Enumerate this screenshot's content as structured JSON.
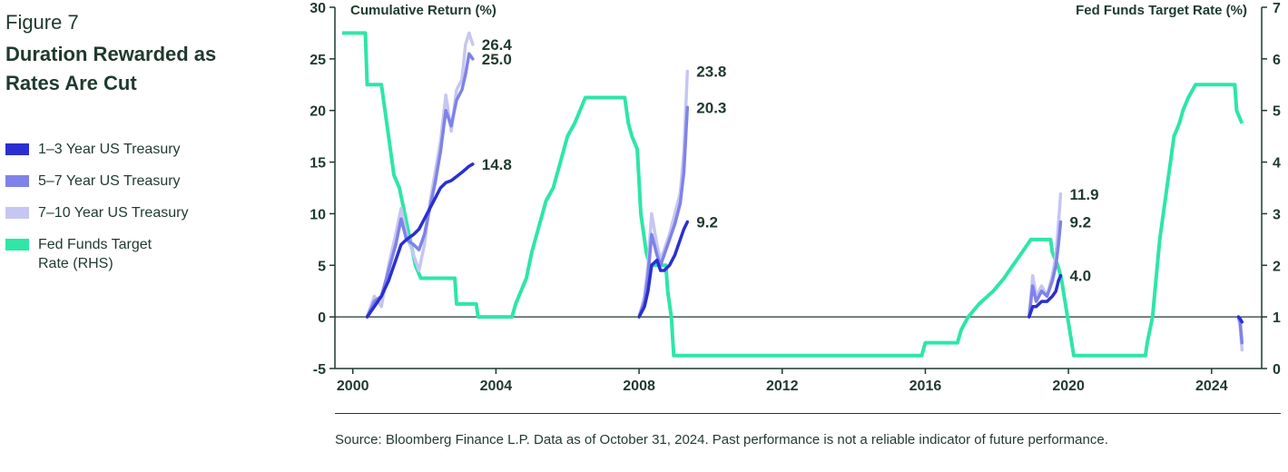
{
  "figure": {
    "label": "Figure 7",
    "title": "Duration Rewarded as Rates Are Cut"
  },
  "legend": [
    {
      "label": "1–3 Year US Treasury",
      "color": "#2b2fd0"
    },
    {
      "label": "5–7 Year US Treasury",
      "color": "#7f82e8"
    },
    {
      "label": "7–10 Year US Treasury",
      "color": "#c6c6f2"
    },
    {
      "label": "Fed Funds Target Rate (RHS)",
      "color": "#2ee6a6"
    }
  ],
  "source": "Source: Bloomberg Finance L.P. Data as of October 31, 2024. Past performance is not a reliable indicator of future performance.",
  "chart_data": {
    "type": "line",
    "left_axis": {
      "title": "Cumulative Return (%)",
      "ylim": [
        -5,
        30
      ],
      "ticks": [
        30,
        25,
        20,
        15,
        10,
        5,
        0,
        -5
      ]
    },
    "right_axis": {
      "title": "Fed Funds Target Rate (%)",
      "ylim": [
        0,
        7
      ],
      "ticks": [
        7,
        6,
        5,
        4,
        3,
        2,
        1,
        0
      ]
    },
    "x_axis": {
      "xlim": [
        1999.5,
        2025.4
      ],
      "ticks": [
        2000,
        2004,
        2008,
        2012,
        2016,
        2020,
        2024
      ]
    },
    "zero_line": 0,
    "fed_funds": {
      "name": "Fed Funds Target Rate (RHS)",
      "axis": "right",
      "color": "#2ee6a6",
      "points": [
        [
          1999.7,
          6.5
        ],
        [
          2000.35,
          6.5
        ],
        [
          2000.4,
          5.5
        ],
        [
          2000.8,
          5.5
        ],
        [
          2001.0,
          4.5
        ],
        [
          2001.15,
          3.75
        ],
        [
          2001.3,
          3.5
        ],
        [
          2001.45,
          3.0
        ],
        [
          2001.6,
          2.5
        ],
        [
          2001.75,
          2.0
        ],
        [
          2001.9,
          1.75
        ],
        [
          2002.85,
          1.75
        ],
        [
          2002.9,
          1.25
        ],
        [
          2003.45,
          1.25
        ],
        [
          2003.5,
          1.0
        ],
        [
          2004.45,
          1.0
        ],
        [
          2004.55,
          1.25
        ],
        [
          2004.7,
          1.5
        ],
        [
          2004.85,
          1.75
        ],
        [
          2005.0,
          2.25
        ],
        [
          2005.2,
          2.75
        ],
        [
          2005.4,
          3.25
        ],
        [
          2005.6,
          3.5
        ],
        [
          2005.8,
          4.0
        ],
        [
          2006.0,
          4.5
        ],
        [
          2006.2,
          4.75
        ],
        [
          2006.5,
          5.25
        ],
        [
          2007.6,
          5.25
        ],
        [
          2007.7,
          4.75
        ],
        [
          2007.8,
          4.5
        ],
        [
          2007.95,
          4.25
        ],
        [
          2008.05,
          3.0
        ],
        [
          2008.2,
          2.25
        ],
        [
          2008.3,
          2.0
        ],
        [
          2008.75,
          2.0
        ],
        [
          2008.8,
          1.5
        ],
        [
          2008.9,
          1.0
        ],
        [
          2008.97,
          0.25
        ],
        [
          2015.9,
          0.25
        ],
        [
          2016.0,
          0.5
        ],
        [
          2016.9,
          0.5
        ],
        [
          2017.0,
          0.75
        ],
        [
          2017.2,
          1.0
        ],
        [
          2017.5,
          1.25
        ],
        [
          2017.9,
          1.5
        ],
        [
          2018.2,
          1.75
        ],
        [
          2018.45,
          2.0
        ],
        [
          2018.7,
          2.25
        ],
        [
          2018.95,
          2.5
        ],
        [
          2019.5,
          2.5
        ],
        [
          2019.55,
          2.25
        ],
        [
          2019.7,
          2.0
        ],
        [
          2019.8,
          1.75
        ],
        [
          2020.15,
          0.25
        ],
        [
          2022.15,
          0.25
        ],
        [
          2022.2,
          0.5
        ],
        [
          2022.35,
          1.0
        ],
        [
          2022.45,
          1.75
        ],
        [
          2022.55,
          2.5
        ],
        [
          2022.7,
          3.25
        ],
        [
          2022.85,
          4.0
        ],
        [
          2022.95,
          4.5
        ],
        [
          2023.1,
          4.75
        ],
        [
          2023.2,
          5.0
        ],
        [
          2023.35,
          5.25
        ],
        [
          2023.55,
          5.5
        ],
        [
          2024.65,
          5.5
        ],
        [
          2024.7,
          5.0
        ],
        [
          2024.85,
          4.75
        ]
      ]
    },
    "series": [
      {
        "name": "7–10 Year US Treasury",
        "color": "#c6c6f2",
        "axis": "left",
        "segments": [
          [
            [
              2000.4,
              0
            ],
            [
              2000.6,
              2
            ],
            [
              2000.8,
              1
            ],
            [
              2001.0,
              5
            ],
            [
              2001.2,
              8
            ],
            [
              2001.35,
              10.5
            ],
            [
              2001.5,
              8
            ],
            [
              2001.7,
              6
            ],
            [
              2001.85,
              4.5
            ],
            [
              2002.0,
              7
            ],
            [
              2002.15,
              11
            ],
            [
              2002.3,
              14
            ],
            [
              2002.45,
              17
            ],
            [
              2002.6,
              21.5
            ],
            [
              2002.75,
              18
            ],
            [
              2002.9,
              22
            ],
            [
              2003.05,
              23
            ],
            [
              2003.15,
              26.4
            ],
            [
              2003.25,
              27.5
            ],
            [
              2003.35,
              26.4
            ]
          ],
          [
            [
              2008.0,
              0
            ],
            [
              2008.15,
              2
            ],
            [
              2008.25,
              5
            ],
            [
              2008.35,
              10
            ],
            [
              2008.5,
              7
            ],
            [
              2008.6,
              5.5
            ],
            [
              2008.7,
              6.5
            ],
            [
              2008.85,
              8
            ],
            [
              2009.0,
              10
            ],
            [
              2009.15,
              12
            ],
            [
              2009.25,
              16
            ],
            [
              2009.35,
              23.8
            ]
          ],
          [
            [
              2018.9,
              0
            ],
            [
              2019.0,
              4
            ],
            [
              2019.1,
              2
            ],
            [
              2019.25,
              3
            ],
            [
              2019.4,
              2
            ],
            [
              2019.55,
              4
            ],
            [
              2019.65,
              6
            ],
            [
              2019.72,
              9
            ],
            [
              2019.78,
              11.9
            ]
          ],
          [
            [
              2024.75,
              0
            ],
            [
              2024.8,
              -1
            ],
            [
              2024.85,
              -3.2
            ]
          ]
        ]
      },
      {
        "name": "5–7 Year US Treasury",
        "color": "#7f82e8",
        "axis": "left",
        "segments": [
          [
            [
              2000.4,
              0
            ],
            [
              2000.6,
              1.5
            ],
            [
              2000.8,
              2
            ],
            [
              2001.0,
              4.5
            ],
            [
              2001.2,
              7
            ],
            [
              2001.35,
              9.5
            ],
            [
              2001.5,
              7.5
            ],
            [
              2001.7,
              7
            ],
            [
              2001.85,
              6.5
            ],
            [
              2002.0,
              8
            ],
            [
              2002.15,
              10.5
            ],
            [
              2002.3,
              13
            ],
            [
              2002.45,
              16
            ],
            [
              2002.6,
              20
            ],
            [
              2002.75,
              18.5
            ],
            [
              2002.9,
              21
            ],
            [
              2003.05,
              22
            ],
            [
              2003.15,
              23.5
            ],
            [
              2003.25,
              25.5
            ],
            [
              2003.35,
              25.0
            ]
          ],
          [
            [
              2008.0,
              0
            ],
            [
              2008.15,
              1.5
            ],
            [
              2008.25,
              4
            ],
            [
              2008.35,
              8
            ],
            [
              2008.5,
              6
            ],
            [
              2008.6,
              5
            ],
            [
              2008.7,
              6
            ],
            [
              2008.85,
              7.5
            ],
            [
              2009.0,
              9
            ],
            [
              2009.15,
              11
            ],
            [
              2009.25,
              14
            ],
            [
              2009.35,
              20.3
            ]
          ],
          [
            [
              2018.9,
              0
            ],
            [
              2019.0,
              3
            ],
            [
              2019.1,
              1.5
            ],
            [
              2019.25,
              2.5
            ],
            [
              2019.4,
              2
            ],
            [
              2019.55,
              3.5
            ],
            [
              2019.65,
              5
            ],
            [
              2019.72,
              7
            ],
            [
              2019.78,
              9.2
            ]
          ],
          [
            [
              2024.75,
              0
            ],
            [
              2024.8,
              -0.5
            ],
            [
              2024.85,
              -2.5
            ]
          ]
        ]
      },
      {
        "name": "1–3 Year US Treasury",
        "color": "#2b2fd0",
        "axis": "left",
        "segments": [
          [
            [
              2000.4,
              0
            ],
            [
              2000.6,
              1
            ],
            [
              2000.8,
              2
            ],
            [
              2001.0,
              3.5
            ],
            [
              2001.2,
              5.5
            ],
            [
              2001.35,
              7
            ],
            [
              2001.5,
              7.5
            ],
            [
              2001.7,
              8
            ],
            [
              2001.85,
              8.5
            ],
            [
              2002.0,
              9.5
            ],
            [
              2002.15,
              10.5
            ],
            [
              2002.3,
              11.5
            ],
            [
              2002.45,
              12.5
            ],
            [
              2002.6,
              13
            ],
            [
              2002.75,
              13.2
            ],
            [
              2002.9,
              13.6
            ],
            [
              2003.05,
              14
            ],
            [
              2003.15,
              14.3
            ],
            [
              2003.25,
              14.6
            ],
            [
              2003.35,
              14.8
            ]
          ],
          [
            [
              2008.0,
              0
            ],
            [
              2008.15,
              1
            ],
            [
              2008.25,
              2.5
            ],
            [
              2008.35,
              5
            ],
            [
              2008.5,
              5.5
            ],
            [
              2008.6,
              4.5
            ],
            [
              2008.7,
              4.5
            ],
            [
              2008.85,
              5
            ],
            [
              2009.0,
              6
            ],
            [
              2009.15,
              7.5
            ],
            [
              2009.25,
              8.5
            ],
            [
              2009.35,
              9.2
            ]
          ],
          [
            [
              2018.9,
              0
            ],
            [
              2019.0,
              1
            ],
            [
              2019.1,
              1
            ],
            [
              2019.25,
              1.5
            ],
            [
              2019.4,
              1.5
            ],
            [
              2019.55,
              2
            ],
            [
              2019.65,
              2.5
            ],
            [
              2019.72,
              3.5
            ],
            [
              2019.78,
              4.0
            ]
          ],
          [
            [
              2024.75,
              0
            ],
            [
              2024.8,
              -0.2
            ],
            [
              2024.85,
              -0.5
            ]
          ]
        ]
      }
    ],
    "end_labels": [
      {
        "text": "26.4",
        "x": 2003.35,
        "y": 26.4
      },
      {
        "text": "25.0",
        "x": 2003.35,
        "y": 25.0
      },
      {
        "text": "14.8",
        "x": 2003.35,
        "y": 14.8
      },
      {
        "text": "23.8",
        "x": 2009.35,
        "y": 23.8
      },
      {
        "text": "20.3",
        "x": 2009.35,
        "y": 20.3
      },
      {
        "text": "9.2",
        "x": 2009.35,
        "y": 9.2
      },
      {
        "text": "11.9",
        "x": 2019.78,
        "y": 11.9
      },
      {
        "text": "9.2",
        "x": 2019.78,
        "y": 9.2
      },
      {
        "text": "4.0",
        "x": 2019.78,
        "y": 4.0
      }
    ]
  }
}
